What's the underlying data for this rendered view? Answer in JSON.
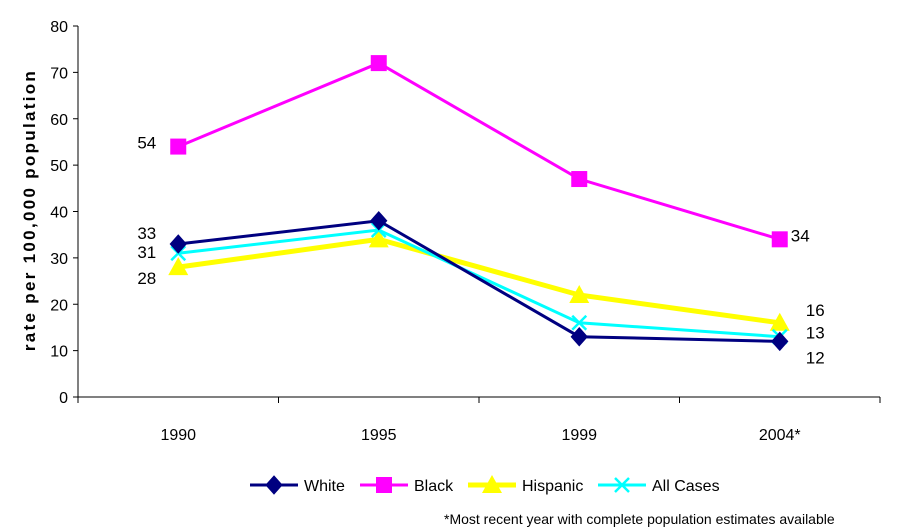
{
  "chart_data": {
    "type": "line",
    "categories": [
      "1990",
      "1995",
      "1999",
      "2004*"
    ],
    "ylabel": "rate per 100,000 population",
    "ylim": [
      0,
      80
    ],
    "yticks": [
      0,
      10,
      20,
      30,
      40,
      50,
      60,
      70,
      80
    ],
    "legend_position": "bottom",
    "series": [
      {
        "name": "White",
        "values": [
          33,
          38,
          13,
          12
        ],
        "color": "#000080",
        "marker": "diamond"
      },
      {
        "name": "Black",
        "values": [
          54,
          72,
          47,
          34
        ],
        "color": "#FF00FF",
        "marker": "square"
      },
      {
        "name": "Hispanic",
        "values": [
          28,
          34,
          22,
          16
        ],
        "color": "#FFFF00",
        "marker": "triangle"
      },
      {
        "name": "All Cases",
        "values": [
          31,
          36,
          16,
          13
        ],
        "color": "#00FFFF",
        "marker": "x"
      }
    ],
    "data_labels": [
      {
        "text": "54",
        "series": "Black",
        "index": 0
      },
      {
        "text": "33",
        "series": "White",
        "index": 0
      },
      {
        "text": "31",
        "series": "All Cases",
        "index": 0
      },
      {
        "text": "28",
        "series": "Hispanic",
        "index": 0
      },
      {
        "text": "34",
        "series": "Black",
        "index": 3
      },
      {
        "text": "16",
        "series": "Hispanic",
        "index": 3
      },
      {
        "text": "13",
        "series": "All Cases",
        "index": 3
      },
      {
        "text": "12",
        "series": "White",
        "index": 3
      }
    ],
    "footnote": "*Most recent year  with complete population estimates available"
  }
}
